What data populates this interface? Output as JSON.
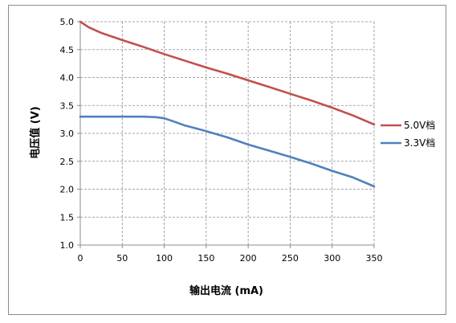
{
  "chart_data": {
    "type": "line",
    "xlabel": "输出电流 (mA)",
    "ylabel": "电压值 (V)",
    "xlim": [
      0,
      350
    ],
    "ylim": [
      1.0,
      5.0
    ],
    "xticks": [
      "0",
      "50",
      "100",
      "150",
      "200",
      "250",
      "300",
      "350"
    ],
    "yticks": [
      "1.0",
      "1.5",
      "2.0",
      "2.5",
      "3.0",
      "3.5",
      "4.0",
      "4.5",
      "5.0"
    ],
    "grid": true,
    "legend": "right",
    "series": [
      {
        "name": "5.0V档",
        "color": "#c0504d",
        "x": [
          0,
          10,
          25,
          50,
          75,
          100,
          125,
          150,
          175,
          200,
          225,
          250,
          275,
          300,
          325,
          350
        ],
        "y": [
          5.0,
          4.9,
          4.8,
          4.67,
          4.55,
          4.42,
          4.3,
          4.18,
          4.07,
          3.95,
          3.83,
          3.71,
          3.59,
          3.46,
          3.32,
          3.16
        ]
      },
      {
        "name": "3.3V档",
        "color": "#4f81bd",
        "x": [
          0,
          25,
          50,
          75,
          90,
          100,
          110,
          125,
          150,
          175,
          200,
          225,
          250,
          275,
          300,
          325,
          350
        ],
        "y": [
          3.3,
          3.3,
          3.3,
          3.3,
          3.29,
          3.27,
          3.22,
          3.14,
          3.04,
          2.93,
          2.8,
          2.69,
          2.58,
          2.46,
          2.33,
          2.21,
          2.05
        ]
      }
    ]
  }
}
